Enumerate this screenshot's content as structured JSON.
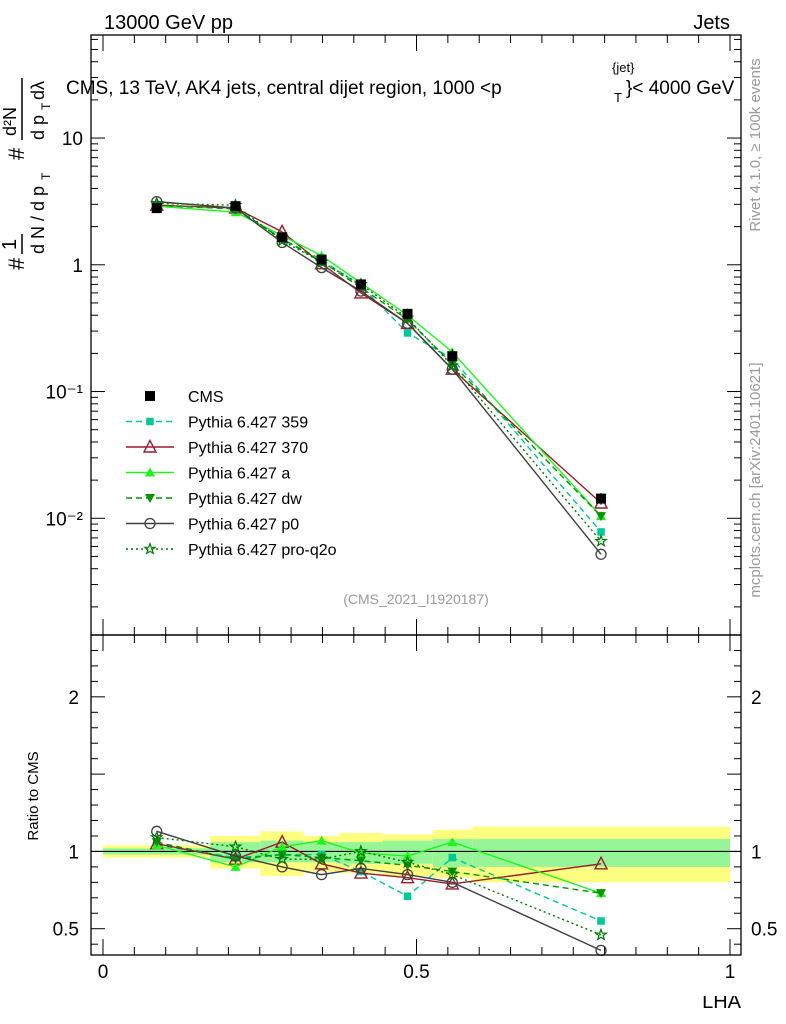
{
  "header": {
    "left": "13000 GeV pp",
    "right": "Jets",
    "title_main": "CMS, 13 TeV, AK4 jets, central dijet region, 1000 <p",
    "title_sup": "{jet}",
    "title_sub": "T",
    "title_end": "}< 4000 GeV"
  },
  "side_labels": {
    "rivet": "Rivet 4.1.0, ≥ 100k events",
    "mcplots": "mcplots.cern.ch [arXiv:2401.10621]"
  },
  "watermark": "(CMS_2021_I1920187)",
  "ylabel_ratio": "Ratio to CMS",
  "xlabel": "LHA",
  "colors": {
    "data": "#000000",
    "p359": "#00c896",
    "p370": "#9b1c2c",
    "pa": "#1ef51e",
    "pdw": "#009600",
    "pp0": "#404040",
    "pq2o": "#007a00",
    "band_outer": "#ffff80",
    "band_inner": "#96f596"
  },
  "chart_data": [
    {
      "type": "scatter",
      "panel": "main",
      "yscale": "log",
      "xlim": [
        0,
        1
      ],
      "ylim": [
        0.0012,
        65
      ],
      "ytick_labels": [
        "10⁻²",
        "10⁻¹",
        "1",
        "10"
      ],
      "ytick_values": [
        0.01,
        0.1,
        1,
        10
      ],
      "ylabel": "1/N dN/dp_T dλ, d²N/dp_T dλ",
      "x": [
        0.0857,
        0.2114,
        0.2857,
        0.3486,
        0.4114,
        0.4857,
        0.5571,
        0.7943
      ],
      "data": {
        "name": "CMS",
        "values": [
          2.8,
          2.9,
          1.65,
          1.1,
          0.7,
          0.41,
          0.19,
          0.0143
        ],
        "errors": [
          0.1,
          0.1,
          0.1,
          0.08,
          0.06,
          0.04,
          0.025,
          0.0015
        ]
      },
      "series": [
        {
          "name": "Pythia 6.427 359",
          "key": "p359",
          "marker": "square",
          "dash": "dashed",
          "values": [
            2.9,
            2.8,
            1.6,
            1.1,
            0.68,
            0.29,
            0.182,
            0.0078
          ]
        },
        {
          "name": "Pythia 6.427 370",
          "key": "p370",
          "marker": "triangle-open",
          "dash": "solid",
          "values": [
            2.95,
            2.8,
            1.82,
            1.02,
            0.6,
            0.345,
            0.15,
            0.0132
          ]
        },
        {
          "name": "Pythia 6.427 a",
          "key": "pa",
          "marker": "triangle",
          "dash": "solid",
          "values": [
            2.9,
            2.6,
            1.7,
            1.18,
            0.72,
            0.4,
            0.205,
            0.0104
          ]
        },
        {
          "name": "Pythia 6.427 dw",
          "key": "pdw",
          "marker": "triangle-down",
          "dash": "dashed",
          "values": [
            2.95,
            2.75,
            1.6,
            1.06,
            0.66,
            0.37,
            0.165,
            0.0104
          ]
        },
        {
          "name": "Pythia 6.427 p0",
          "key": "pp0",
          "marker": "circle-open",
          "dash": "solid",
          "values": [
            3.15,
            2.8,
            1.5,
            0.95,
            0.62,
            0.345,
            0.15,
            0.0052
          ]
        },
        {
          "name": "Pythia 6.427 pro-q2o",
          "key": "pq2o",
          "marker": "star",
          "dash": "dotted",
          "values": [
            3.05,
            2.95,
            1.55,
            1.05,
            0.7,
            0.38,
            0.16,
            0.0066
          ]
        }
      ]
    },
    {
      "type": "scatter",
      "panel": "ratio",
      "xlim": [
        0,
        1
      ],
      "ylim": [
        0.33,
        2.4
      ],
      "ytick_labels": [
        "0.5",
        "1",
        "2"
      ],
      "ytick_values": [
        0.5,
        1,
        2
      ],
      "xtick_labels": [
        "0",
        "0.5",
        "1"
      ],
      "xtick_values": [
        0,
        0.5,
        1
      ],
      "ylabel": "Ratio to CMS",
      "bins": [
        [
          0.0,
          0.171
        ],
        [
          0.171,
          0.251
        ],
        [
          0.251,
          0.32
        ],
        [
          0.32,
          0.377
        ],
        [
          0.377,
          0.446
        ],
        [
          0.446,
          0.526
        ],
        [
          0.526,
          0.589
        ],
        [
          0.589,
          1.0
        ]
      ],
      "band_outer": [
        [
          0.96,
          1.04
        ],
        [
          0.89,
          1.1
        ],
        [
          0.84,
          1.13
        ],
        [
          0.87,
          1.1
        ],
        [
          0.86,
          1.12
        ],
        [
          0.84,
          1.11
        ],
        [
          0.83,
          1.14
        ],
        [
          0.8,
          1.16
        ]
      ],
      "band_inner": [
        [
          0.98,
          1.02
        ],
        [
          0.93,
          1.06
        ],
        [
          0.93,
          1.07
        ],
        [
          0.93,
          1.06
        ],
        [
          0.92,
          1.06
        ],
        [
          0.92,
          1.07
        ],
        [
          0.9,
          1.08
        ],
        [
          0.9,
          1.08
        ]
      ],
      "x": [
        0.0857,
        0.2114,
        0.2857,
        0.3486,
        0.4114,
        0.4857,
        0.5571,
        0.7943
      ],
      "series": [
        {
          "name": "Pythia 6.427 359",
          "key": "p359",
          "values": [
            1.04,
            0.96,
            0.98,
            0.98,
            0.87,
            0.71,
            0.96,
            0.55
          ]
        },
        {
          "name": "Pythia 6.427 370",
          "key": "p370",
          "values": [
            1.05,
            0.95,
            1.06,
            0.92,
            0.86,
            0.83,
            0.79,
            0.92
          ]
        },
        {
          "name": "Pythia 6.427 a",
          "key": "pa",
          "values": [
            1.04,
            0.9,
            1.03,
            1.07,
            0.99,
            0.97,
            1.06,
            0.73
          ]
        },
        {
          "name": "Pythia 6.427 dw",
          "key": "pdw",
          "values": [
            1.06,
            0.95,
            0.98,
            0.96,
            0.94,
            0.91,
            0.87,
            0.73
          ]
        },
        {
          "name": "Pythia 6.427 p0",
          "key": "pp0",
          "values": [
            1.13,
            0.97,
            0.9,
            0.85,
            0.89,
            0.85,
            0.8,
            0.36
          ]
        },
        {
          "name": "Pythia 6.427 pro-q2o",
          "key": "pq2o",
          "values": [
            1.09,
            1.03,
            0.95,
            0.95,
            1.0,
            0.93,
            0.85,
            0.46
          ]
        }
      ]
    }
  ]
}
